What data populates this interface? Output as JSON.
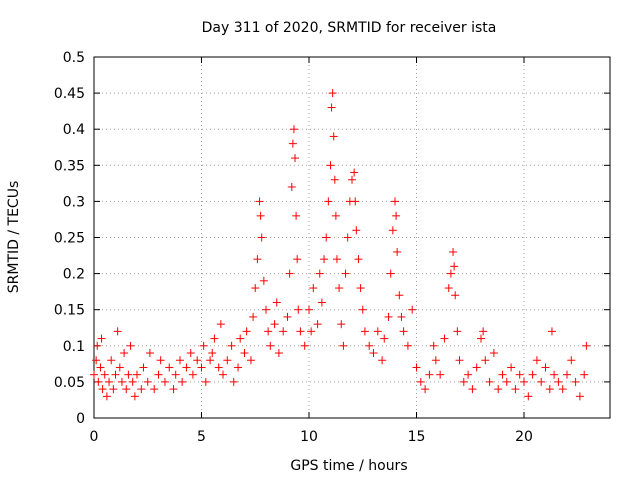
{
  "chart_data": {
    "type": "scatter",
    "title": "Day 311 of 2020, SRMTID for receiver ista",
    "xlabel": "GPS time / hours",
    "ylabel": "SRMTID / TECUs",
    "xlim": [
      0,
      24
    ],
    "ylim": [
      0,
      0.5
    ],
    "xticks": [
      0,
      5,
      10,
      15,
      20
    ],
    "xtick_labels": [
      "0",
      "5",
      "10",
      "15",
      "20"
    ],
    "yticks": [
      0,
      0.05,
      0.1,
      0.15,
      0.2,
      0.25,
      0.3,
      0.35,
      0.4,
      0.45,
      0.5
    ],
    "ytick_labels": [
      "0",
      "0.05",
      "0.1",
      "0.15",
      "0.2",
      "0.25",
      "0.3",
      "0.35",
      "0.4",
      "0.45",
      "0.5"
    ],
    "grid": true,
    "marker": "+",
    "series": [
      {
        "name": "SRMTID",
        "color": "#ff0000",
        "points": [
          [
            0.0,
            0.06
          ],
          [
            0.1,
            0.08
          ],
          [
            0.15,
            0.1
          ],
          [
            0.2,
            0.05
          ],
          [
            0.3,
            0.07
          ],
          [
            0.35,
            0.11
          ],
          [
            0.4,
            0.04
          ],
          [
            0.5,
            0.06
          ],
          [
            0.6,
            0.03
          ],
          [
            0.7,
            0.05
          ],
          [
            0.8,
            0.08
          ],
          [
            0.9,
            0.04
          ],
          [
            1.0,
            0.06
          ],
          [
            1.1,
            0.12
          ],
          [
            1.2,
            0.07
          ],
          [
            1.3,
            0.05
          ],
          [
            1.4,
            0.09
          ],
          [
            1.5,
            0.04
          ],
          [
            1.6,
            0.06
          ],
          [
            1.7,
            0.1
          ],
          [
            1.8,
            0.05
          ],
          [
            1.9,
            0.03
          ],
          [
            2.0,
            0.06
          ],
          [
            2.2,
            0.04
          ],
          [
            2.3,
            0.07
          ],
          [
            2.5,
            0.05
          ],
          [
            2.6,
            0.09
          ],
          [
            2.8,
            0.04
          ],
          [
            3.0,
            0.06
          ],
          [
            3.1,
            0.08
          ],
          [
            3.3,
            0.05
          ],
          [
            3.5,
            0.07
          ],
          [
            3.7,
            0.04
          ],
          [
            3.8,
            0.06
          ],
          [
            4.0,
            0.08
          ],
          [
            4.1,
            0.05
          ],
          [
            4.3,
            0.07
          ],
          [
            4.5,
            0.09
          ],
          [
            4.6,
            0.06
          ],
          [
            4.8,
            0.08
          ],
          [
            5.0,
            0.07
          ],
          [
            5.1,
            0.1
          ],
          [
            5.2,
            0.05
          ],
          [
            5.4,
            0.08
          ],
          [
            5.5,
            0.09
          ],
          [
            5.6,
            0.11
          ],
          [
            5.8,
            0.07
          ],
          [
            5.9,
            0.13
          ],
          [
            6.0,
            0.06
          ],
          [
            6.2,
            0.08
          ],
          [
            6.4,
            0.1
          ],
          [
            6.5,
            0.05
          ],
          [
            6.7,
            0.07
          ],
          [
            6.8,
            0.11
          ],
          [
            7.0,
            0.09
          ],
          [
            7.1,
            0.12
          ],
          [
            7.3,
            0.08
          ],
          [
            7.4,
            0.14
          ],
          [
            7.5,
            0.18
          ],
          [
            7.6,
            0.22
          ],
          [
            7.7,
            0.3
          ],
          [
            7.75,
            0.28
          ],
          [
            7.8,
            0.25
          ],
          [
            7.9,
            0.19
          ],
          [
            8.0,
            0.15
          ],
          [
            8.1,
            0.12
          ],
          [
            8.2,
            0.1
          ],
          [
            8.4,
            0.13
          ],
          [
            8.5,
            0.16
          ],
          [
            8.6,
            0.09
          ],
          [
            8.8,
            0.12
          ],
          [
            9.0,
            0.14
          ],
          [
            9.1,
            0.2
          ],
          [
            9.2,
            0.32
          ],
          [
            9.25,
            0.38
          ],
          [
            9.3,
            0.4
          ],
          [
            9.35,
            0.36
          ],
          [
            9.4,
            0.28
          ],
          [
            9.45,
            0.22
          ],
          [
            9.5,
            0.15
          ],
          [
            9.6,
            0.12
          ],
          [
            9.8,
            0.1
          ],
          [
            10.0,
            0.15
          ],
          [
            10.1,
            0.12
          ],
          [
            10.2,
            0.18
          ],
          [
            10.4,
            0.13
          ],
          [
            10.5,
            0.2
          ],
          [
            10.6,
            0.16
          ],
          [
            10.7,
            0.22
          ],
          [
            10.8,
            0.25
          ],
          [
            10.9,
            0.3
          ],
          [
            11.0,
            0.35
          ],
          [
            11.05,
            0.43
          ],
          [
            11.1,
            0.45
          ],
          [
            11.15,
            0.39
          ],
          [
            11.2,
            0.33
          ],
          [
            11.25,
            0.28
          ],
          [
            11.3,
            0.22
          ],
          [
            11.4,
            0.18
          ],
          [
            11.5,
            0.13
          ],
          [
            11.6,
            0.1
          ],
          [
            11.7,
            0.2
          ],
          [
            11.8,
            0.25
          ],
          [
            11.9,
            0.3
          ],
          [
            12.0,
            0.33
          ],
          [
            12.1,
            0.34
          ],
          [
            12.15,
            0.3
          ],
          [
            12.2,
            0.26
          ],
          [
            12.3,
            0.22
          ],
          [
            12.4,
            0.18
          ],
          [
            12.5,
            0.15
          ],
          [
            12.6,
            0.12
          ],
          [
            12.8,
            0.1
          ],
          [
            13.0,
            0.09
          ],
          [
            13.2,
            0.12
          ],
          [
            13.4,
            0.08
          ],
          [
            13.5,
            0.11
          ],
          [
            13.7,
            0.14
          ],
          [
            13.8,
            0.2
          ],
          [
            13.9,
            0.26
          ],
          [
            14.0,
            0.3
          ],
          [
            14.05,
            0.28
          ],
          [
            14.1,
            0.23
          ],
          [
            14.2,
            0.17
          ],
          [
            14.3,
            0.14
          ],
          [
            14.4,
            0.12
          ],
          [
            14.6,
            0.1
          ],
          [
            14.8,
            0.15
          ],
          [
            15.0,
            0.07
          ],
          [
            15.2,
            0.05
          ],
          [
            15.4,
            0.04
          ],
          [
            15.6,
            0.06
          ],
          [
            15.8,
            0.1
          ],
          [
            15.9,
            0.08
          ],
          [
            16.1,
            0.06
          ],
          [
            16.3,
            0.11
          ],
          [
            16.5,
            0.18
          ],
          [
            16.6,
            0.2
          ],
          [
            16.7,
            0.23
          ],
          [
            16.75,
            0.21
          ],
          [
            16.8,
            0.17
          ],
          [
            16.9,
            0.12
          ],
          [
            17.0,
            0.08
          ],
          [
            17.2,
            0.05
          ],
          [
            17.4,
            0.06
          ],
          [
            17.6,
            0.04
          ],
          [
            17.8,
            0.07
          ],
          [
            18.0,
            0.11
          ],
          [
            18.1,
            0.12
          ],
          [
            18.2,
            0.08
          ],
          [
            18.4,
            0.05
          ],
          [
            18.6,
            0.09
          ],
          [
            18.8,
            0.04
          ],
          [
            19.0,
            0.06
          ],
          [
            19.2,
            0.05
          ],
          [
            19.4,
            0.07
          ],
          [
            19.6,
            0.04
          ],
          [
            19.8,
            0.06
          ],
          [
            20.0,
            0.05
          ],
          [
            20.2,
            0.03
          ],
          [
            20.4,
            0.06
          ],
          [
            20.6,
            0.08
          ],
          [
            20.8,
            0.05
          ],
          [
            21.0,
            0.07
          ],
          [
            21.2,
            0.04
          ],
          [
            21.3,
            0.12
          ],
          [
            21.4,
            0.06
          ],
          [
            21.6,
            0.05
          ],
          [
            21.8,
            0.04
          ],
          [
            22.0,
            0.06
          ],
          [
            22.2,
            0.08
          ],
          [
            22.4,
            0.05
          ],
          [
            22.6,
            0.03
          ],
          [
            22.8,
            0.06
          ],
          [
            22.9,
            0.1
          ]
        ]
      }
    ]
  }
}
